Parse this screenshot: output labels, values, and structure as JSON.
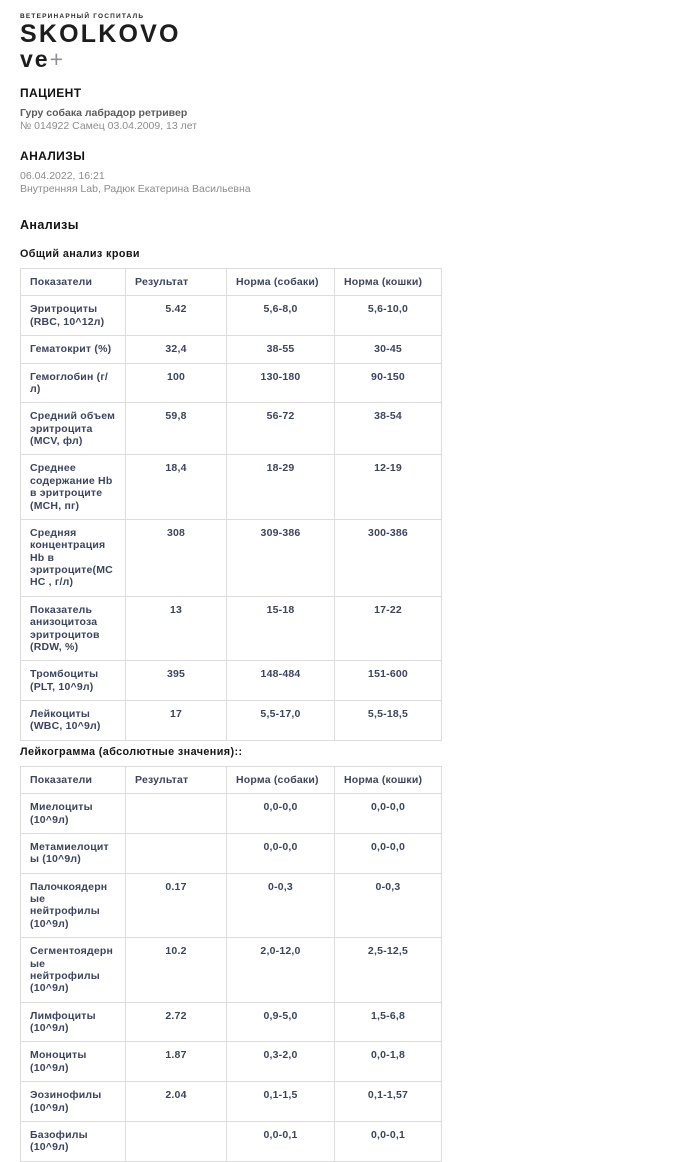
{
  "logo": {
    "tagline": "ВЕТЕРИНАРНЫЙ ГОСПИТАЛЬ",
    "wordmark": "SKOLKOVO",
    "submark": "ve",
    "plus": "+"
  },
  "patient": {
    "section_title": "ПАЦИЕНТ",
    "name_line": "Гуру собака лабрадор ретривер",
    "details_line": "№ 014922 Самец 03.04.2009, 13 лет"
  },
  "analyses_meta": {
    "section_title": "АНАЛИЗЫ",
    "datetime": "06.04.2022, 16:21",
    "lab_line": "Внутренняя Lab, Радюк Екатерина Васильевна"
  },
  "analyses_heading": "Анализы",
  "tables": [
    {
      "title": "Общий анализ крови",
      "columns": [
        "Показатели",
        "Результат",
        "Норма (собаки)",
        "Норма (кошки)"
      ],
      "rows": [
        [
          "Эритроциты (RBC, 10^12л)",
          "5.42",
          "5,6-8,0",
          "5,6-10,0"
        ],
        [
          "Гематокрит (%)",
          "32,4",
          "38-55",
          "30-45"
        ],
        [
          "Гемоглобин (г/л)",
          "100",
          "130-180",
          "90-150"
        ],
        [
          "Средний объем эритроцита (MCV, фл)",
          "59,8",
          "56-72",
          "38-54"
        ],
        [
          "Среднее содержание Hb в эритроците (MCH, пг)",
          "18,4",
          "18-29",
          "12-19"
        ],
        [
          "Средняя концентрация Hb в эритроците(MCHC , г/л)",
          "308",
          "309-386",
          "300-386"
        ],
        [
          "Показатель анизоцитоза эритроцитов (RDW, %)",
          "13",
          "15-18",
          "17-22"
        ],
        [
          "Тромбоциты (PLT, 10^9л)",
          "395",
          "148-484",
          "151-600"
        ],
        [
          "Лейкоциты (WBC, 10^9л)",
          "17",
          "5,5-17,0",
          "5,5-18,5"
        ]
      ]
    },
    {
      "title": "Лейкограмма (абсолютные значения)::",
      "columns": [
        "Показатели",
        "Результат",
        "Норма (собаки)",
        "Норма (кошки)"
      ],
      "rows": [
        [
          "Миелоциты (10^9л)",
          "",
          "0,0-0,0",
          "0,0-0,0"
        ],
        [
          "Метамиелоциты (10^9л)",
          "",
          "0,0-0,0",
          "0,0-0,0"
        ],
        [
          "Палочкоядерные нейтрофилы (10^9л)",
          "0.17",
          "0-0,3",
          "0-0,3"
        ],
        [
          "Сегментоядерные нейтрофилы (10^9л)",
          "10.2",
          "2,0-12,0",
          "2,5-12,5"
        ],
        [
          "Лимфоциты (10^9л)",
          "2.72",
          "0,9-5,0",
          "1,5-6,8"
        ],
        [
          "Моноциты (10^9л)",
          "1.87",
          "0,3-2,0",
          "0,0-1,8"
        ],
        [
          "Эозинофилы (10^9л)",
          "2.04",
          "0,1-1,5",
          "0,1-1,57"
        ],
        [
          "Базофилы (10^9л)",
          "",
          "0,0-0,1",
          "0,0-0,1"
        ]
      ]
    }
  ]
}
